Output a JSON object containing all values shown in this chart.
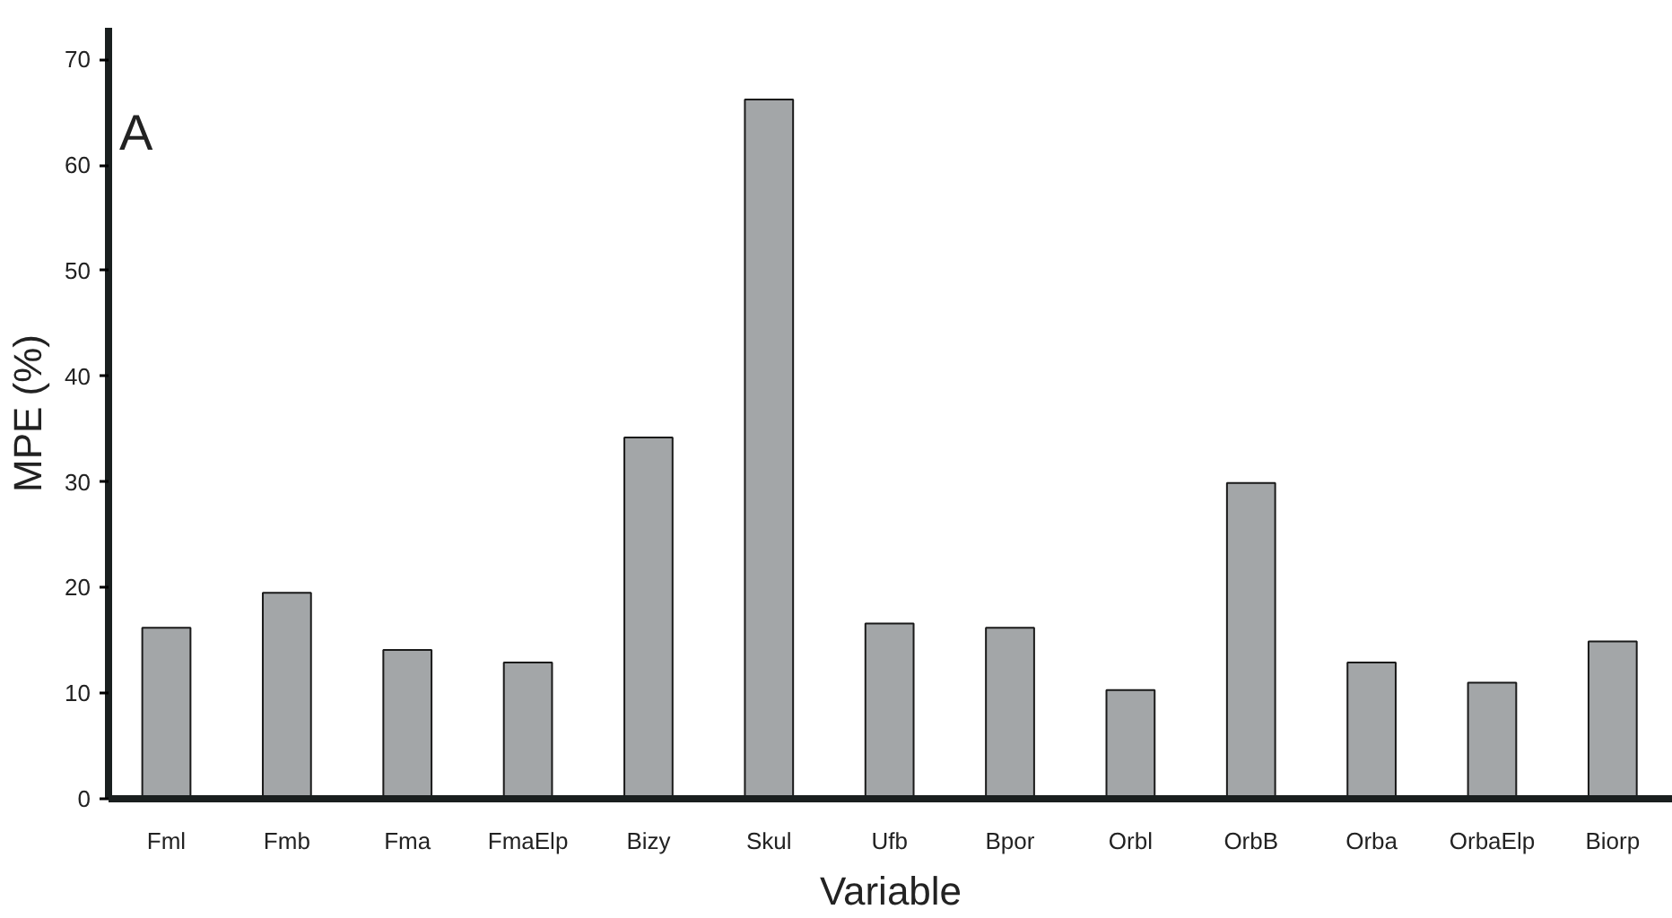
{
  "chart_data": {
    "type": "bar",
    "title": "A",
    "xlabel": "Variable",
    "ylabel": "MPE (%)",
    "categories": [
      "Fml",
      "Fmb",
      "Fma",
      "FmaElp",
      "Bizy",
      "Skul",
      "Ufb",
      "Bpor",
      "Orbl",
      "OrbB",
      "Orba",
      "OrbaElp",
      "Biorp"
    ],
    "values": [
      16.2,
      19.5,
      14.1,
      12.9,
      34.2,
      66.2,
      16.6,
      16.2,
      10.3,
      29.9,
      12.9,
      11.0,
      14.9
    ],
    "color": "#a3a6a8",
    "ylim": [
      0,
      73
    ],
    "yticks": [
      0,
      10,
      20,
      30,
      40,
      50,
      60,
      70
    ],
    "grid": false
  }
}
